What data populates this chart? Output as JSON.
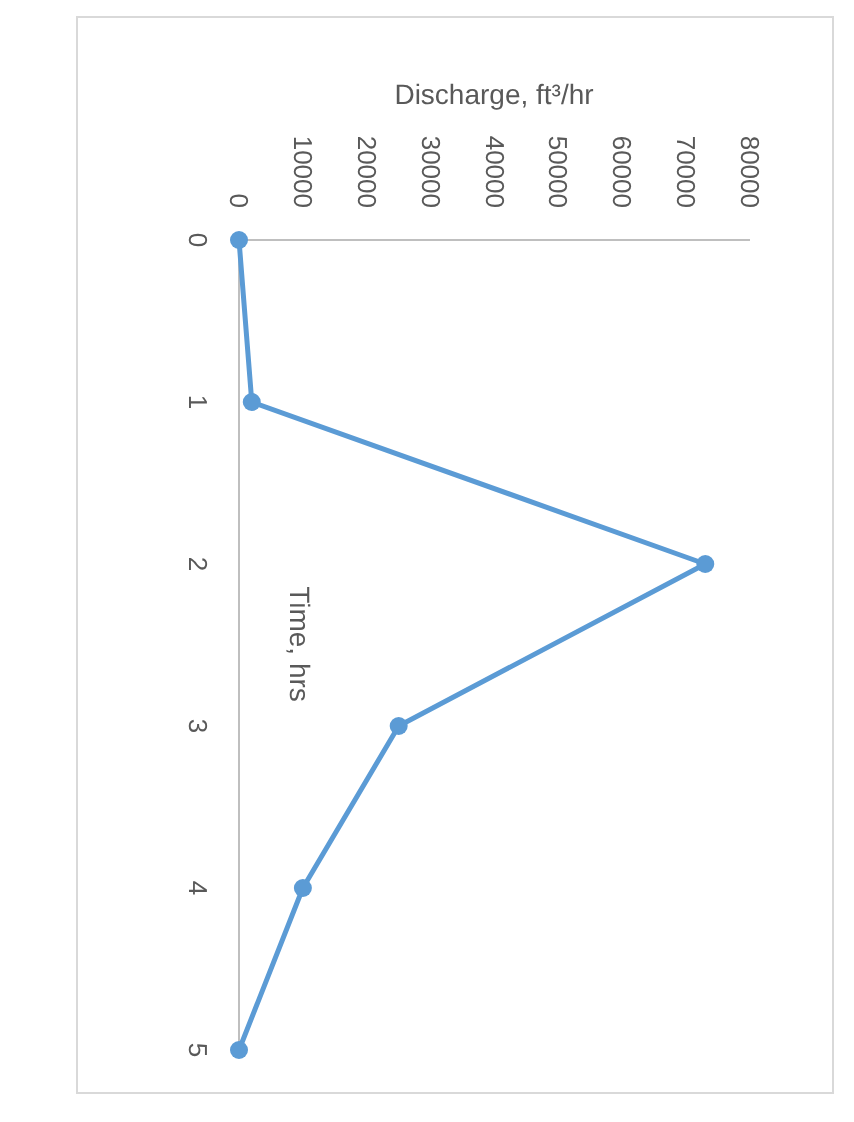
{
  "chart_data": {
    "type": "line",
    "orientation": "horizontal",
    "xlabel": "Discharge, ft³/hr",
    "ylabel": "Time, hrs",
    "categories": [
      "0",
      "1",
      "2",
      "3",
      "4",
      "5"
    ],
    "series": [
      {
        "color": "#5b9bd5",
        "values": [
          0,
          2000,
          73000,
          25000,
          10000,
          0
        ]
      }
    ],
    "xlim": [
      0,
      80000
    ],
    "xticks": [
      0,
      10000,
      20000,
      30000,
      40000,
      50000,
      60000,
      70000,
      80000
    ],
    "marker": "circle",
    "line_style": "solid",
    "grid": false
  }
}
